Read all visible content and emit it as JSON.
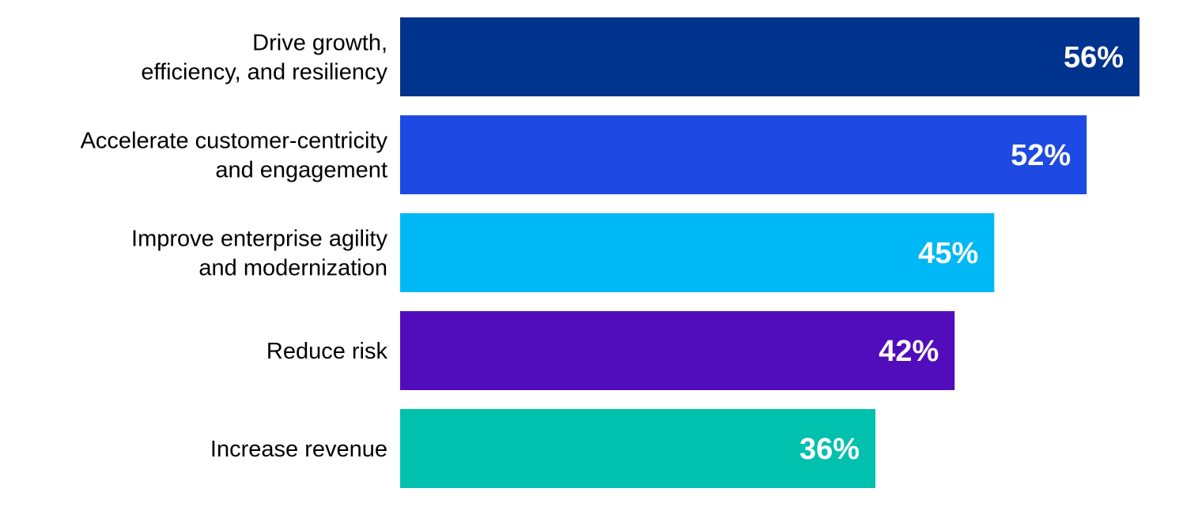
{
  "chart_data": {
    "type": "bar",
    "orientation": "horizontal",
    "categories": [
      [
        "Drive growth,",
        "efficiency, and resiliency"
      ],
      [
        "Accelerate customer-centricity",
        "and engagement"
      ],
      [
        "Improve enterprise agility",
        "and modernization"
      ],
      [
        "Reduce risk"
      ],
      [
        "Increase revenue"
      ]
    ],
    "values": [
      56,
      52,
      45,
      42,
      36
    ],
    "value_labels": [
      "56%",
      "52%",
      "45%",
      "42%",
      "36%"
    ],
    "colors": [
      "#00338d",
      "#1e49e2",
      "#00b8f5",
      "#510dbc",
      "#00c0ae"
    ],
    "value_suffix": "%",
    "xlim": [
      0,
      56
    ],
    "grid": false,
    "legend": "none"
  }
}
